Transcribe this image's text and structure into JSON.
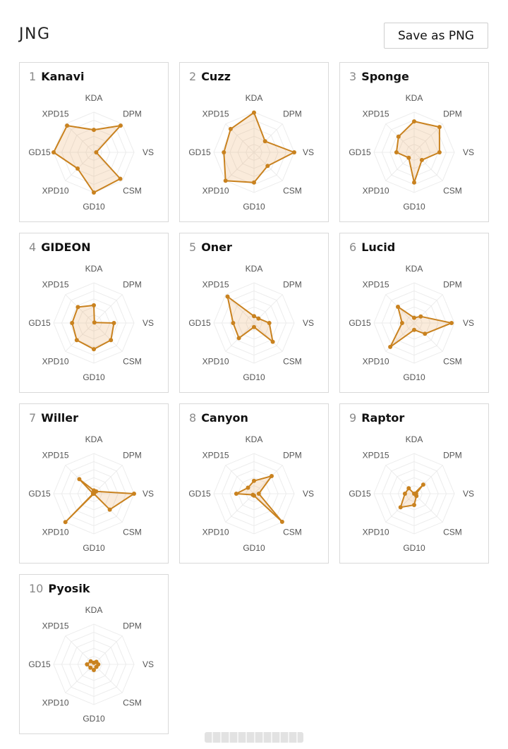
{
  "page": {
    "title": "JNG"
  },
  "toolbar": {
    "save_label": "Save as PNG"
  },
  "axes": [
    "KDA",
    "DPM",
    "VS",
    "CSM",
    "GD10",
    "XPD10",
    "GD15",
    "XPD15"
  ],
  "colors": {
    "accent": "#c9821f",
    "fill": "rgba(232,164,90,0.22)",
    "grid": "#ececec"
  },
  "players": [
    {
      "rank": "1",
      "name": "Kanavi",
      "values": [
        0.56,
        0.94,
        0.06,
        0.93,
        1.0,
        0.57,
        1.0,
        0.94
      ]
    },
    {
      "rank": "2",
      "name": "Cuzz",
      "values": [
        0.99,
        0.39,
        1.0,
        0.48,
        0.75,
        1.0,
        0.75,
        0.82
      ]
    },
    {
      "rank": "3",
      "name": "Sponge",
      "values": [
        0.77,
        0.89,
        0.63,
        0.27,
        0.75,
        0.19,
        0.44,
        0.55
      ]
    },
    {
      "rank": "4",
      "name": "GIDEON",
      "values": [
        0.44,
        0.02,
        0.5,
        0.6,
        0.65,
        0.6,
        0.54,
        0.56
      ]
    },
    {
      "rank": "5",
      "name": "Oner",
      "values": [
        0.17,
        0.16,
        0.38,
        0.66,
        0.1,
        0.53,
        0.52,
        0.93
      ]
    },
    {
      "rank": "6",
      "name": "Lucid",
      "values": [
        0.13,
        0.23,
        0.93,
        0.38,
        0.17,
        0.84,
        0.3,
        0.57
      ]
    },
    {
      "rank": "7",
      "name": "Willer",
      "values": [
        0.08,
        0.08,
        1.0,
        0.56,
        0.0,
        1.0,
        0.02,
        0.51
      ]
    },
    {
      "rank": "8",
      "name": "Canyon",
      "values": [
        0.32,
        0.62,
        0.12,
        0.99,
        0.05,
        0.04,
        0.44,
        0.21
      ]
    },
    {
      "rank": "9",
      "name": "Raptor",
      "values": [
        0.0,
        0.32,
        0.05,
        0.08,
        0.28,
        0.48,
        0.23,
        0.19
      ]
    },
    {
      "rank": "10",
      "name": "Pyosik",
      "values": [
        0.04,
        0.09,
        0.11,
        0.09,
        0.14,
        0.12,
        0.17,
        0.11
      ]
    }
  ]
}
